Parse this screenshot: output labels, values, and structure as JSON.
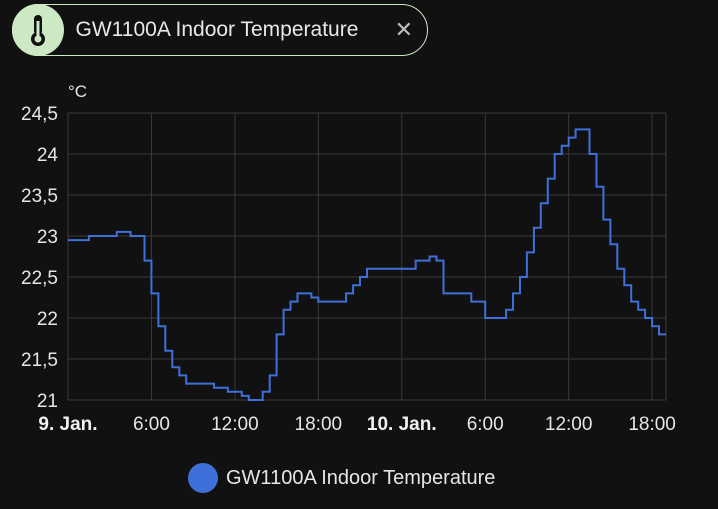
{
  "header": {
    "chip_label": "GW1100A Indoor Temperature",
    "icon": "thermometer-icon",
    "close_glyph": "✕"
  },
  "legend": {
    "label": "GW1100A Indoor Temperature"
  },
  "colors": {
    "series": "#3f6fd8",
    "chip_accent": "#cde8c4",
    "grid": "#3a3a3a",
    "background": "#111111"
  },
  "chart_data": {
    "type": "line",
    "title": "",
    "xlabel": "",
    "ylabel": "°C",
    "ylim": [
      21,
      24.5
    ],
    "xlim": [
      "2025-01-09T00:00",
      "2025-01-10T19:00"
    ],
    "y_ticks": [
      "21",
      "21,5",
      "22",
      "22,5",
      "23",
      "23,5",
      "24",
      "24,5"
    ],
    "x_ticks": [
      {
        "label": "9. Jan.",
        "time": "2025-01-09T00:00",
        "major": true
      },
      {
        "label": "6:00",
        "time": "2025-01-09T06:00",
        "major": false
      },
      {
        "label": "12:00",
        "time": "2025-01-09T12:00",
        "major": false
      },
      {
        "label": "18:00",
        "time": "2025-01-09T18:00",
        "major": false
      },
      {
        "label": "10. Jan.",
        "time": "2025-01-10T00:00",
        "major": true
      },
      {
        "label": "6:00",
        "time": "2025-01-10T06:00",
        "major": false
      },
      {
        "label": "12:00",
        "time": "2025-01-10T12:00",
        "major": false
      },
      {
        "label": "18:00",
        "time": "2025-01-10T18:00",
        "major": false
      }
    ],
    "grid": true,
    "legend_position": "bottom",
    "series": [
      {
        "name": "GW1100A Indoor Temperature",
        "x": [
          "2025-01-09T00:00",
          "2025-01-09T01:30",
          "2025-01-09T02:30",
          "2025-01-09T03:30",
          "2025-01-09T04:30",
          "2025-01-09T05:00",
          "2025-01-09T05:30",
          "2025-01-09T06:00",
          "2025-01-09T06:30",
          "2025-01-09T07:00",
          "2025-01-09T07:30",
          "2025-01-09T08:00",
          "2025-01-09T08:30",
          "2025-01-09T09:30",
          "2025-01-09T10:30",
          "2025-01-09T11:30",
          "2025-01-09T12:30",
          "2025-01-09T13:00",
          "2025-01-09T13:30",
          "2025-01-09T14:00",
          "2025-01-09T14:30",
          "2025-01-09T15:00",
          "2025-01-09T15:30",
          "2025-01-09T16:00",
          "2025-01-09T16:30",
          "2025-01-09T17:00",
          "2025-01-09T17:30",
          "2025-01-09T18:00",
          "2025-01-09T19:00",
          "2025-01-09T20:00",
          "2025-01-09T20:30",
          "2025-01-09T21:00",
          "2025-01-09T21:30",
          "2025-01-09T22:00",
          "2025-01-09T23:00",
          "2025-01-10T00:00",
          "2025-01-10T01:00",
          "2025-01-10T02:00",
          "2025-01-10T02:30",
          "2025-01-10T03:00",
          "2025-01-10T04:00",
          "2025-01-10T05:00",
          "2025-01-10T06:00",
          "2025-01-10T07:00",
          "2025-01-10T07:30",
          "2025-01-10T08:00",
          "2025-01-10T08:30",
          "2025-01-10T09:00",
          "2025-01-10T09:30",
          "2025-01-10T10:00",
          "2025-01-10T10:30",
          "2025-01-10T11:00",
          "2025-01-10T11:30",
          "2025-01-10T12:00",
          "2025-01-10T12:30",
          "2025-01-10T13:00",
          "2025-01-10T13:30",
          "2025-01-10T14:00",
          "2025-01-10T14:30",
          "2025-01-10T15:00",
          "2025-01-10T15:30",
          "2025-01-10T16:00",
          "2025-01-10T16:30",
          "2025-01-10T17:00",
          "2025-01-10T17:30",
          "2025-01-10T18:00",
          "2025-01-10T18:30",
          "2025-01-10T19:00"
        ],
        "y": [
          22.95,
          23.0,
          23.0,
          23.05,
          23.0,
          23.0,
          22.7,
          22.3,
          21.9,
          21.6,
          21.4,
          21.3,
          21.2,
          21.2,
          21.15,
          21.1,
          21.05,
          21.0,
          21.0,
          21.1,
          21.3,
          21.8,
          22.1,
          22.2,
          22.3,
          22.3,
          22.25,
          22.2,
          22.2,
          22.3,
          22.4,
          22.5,
          22.6,
          22.6,
          22.6,
          22.6,
          22.7,
          22.75,
          22.7,
          22.3,
          22.3,
          22.2,
          22.0,
          22.0,
          22.1,
          22.3,
          22.5,
          22.8,
          23.1,
          23.4,
          23.7,
          24.0,
          24.1,
          24.2,
          24.3,
          24.3,
          24.0,
          23.6,
          23.2,
          22.9,
          22.6,
          22.4,
          22.2,
          22.1,
          22.0,
          21.9,
          21.8,
          21.8
        ]
      }
    ]
  }
}
